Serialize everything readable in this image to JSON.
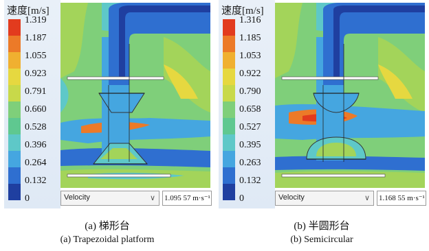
{
  "panels": [
    {
      "legend_title": "速度[m/s]",
      "ticks": [
        "1.319",
        "1.187",
        "1.055",
        "0.923",
        "0.791",
        "0.660",
        "0.528",
        "0.396",
        "0.264",
        "0.132",
        "0"
      ],
      "select_value": "Velocity",
      "readout": "1.095 57 m·s⁻¹",
      "caption_cn": "(a) 梯形台",
      "caption_en": "(a) Trapezoidal platform"
    },
    {
      "legend_title": "速度[m/s]",
      "ticks": [
        "1.316",
        "1.185",
        "1.053",
        "0.922",
        "0.790",
        "0.658",
        "0.527",
        "0.395",
        "0.263",
        "0.132",
        "0"
      ],
      "select_value": "Velocity",
      "readout": "1.168 55 m·s⁻¹",
      "caption_cn": "(b) 半圆形台",
      "caption_en": "(b) Semicircular"
    }
  ],
  "colors": {
    "scale": [
      "#1f3fa0",
      "#2f6fd0",
      "#45a6e0",
      "#5ec8c8",
      "#7fcf7a",
      "#a3d45a",
      "#c8d94a",
      "#e6d840",
      "#f0b030",
      "#ec7a28",
      "#e23b1e"
    ]
  }
}
